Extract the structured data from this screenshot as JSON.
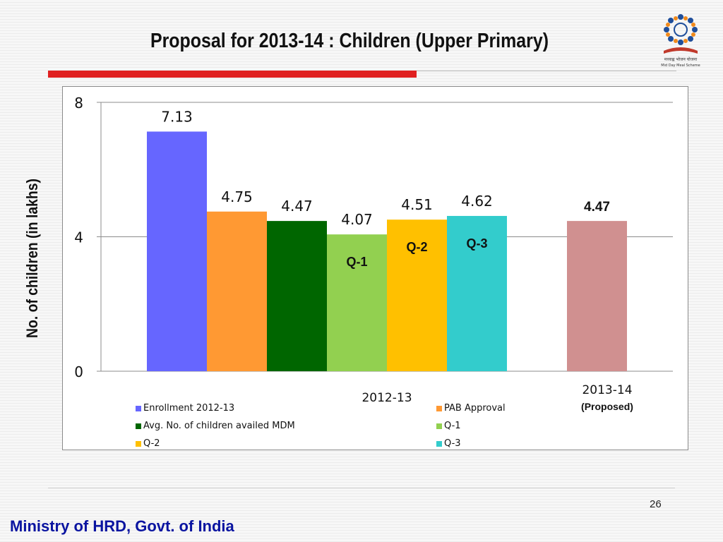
{
  "slide": {
    "title": "Proposal for 2013-14 : Children (Upper Primary)",
    "page_number": "26",
    "footer": "Ministry of HRD, Govt. of India"
  },
  "logo": {
    "caption": "मध्याह्न भोजन योजना",
    "subcaption": "Mid Day Meal Scheme"
  },
  "chart_data": {
    "type": "bar",
    "ylabel": "No. of children (in lakhs)",
    "ylim": [
      0,
      8
    ],
    "yticks": [
      "0",
      "4",
      "8"
    ],
    "groups": [
      {
        "label": "2012-13",
        "sublabel": ""
      },
      {
        "label": "2013-14",
        "sublabel": "(Proposed)"
      }
    ],
    "series": [
      {
        "name": "Enrollment 2012-13",
        "group": 0,
        "value": 7.13,
        "label": "7.13",
        "inner_label": "",
        "color": "#6666ff"
      },
      {
        "name": "PAB Approval",
        "group": 0,
        "value": 4.75,
        "label": "4.75",
        "inner_label": "",
        "color": "#ff9933"
      },
      {
        "name": "Avg. No. of children availed MDM",
        "group": 0,
        "value": 4.47,
        "label": "4.47",
        "inner_label": "",
        "color": "#006600"
      },
      {
        "name": "Q-1",
        "group": 0,
        "value": 4.07,
        "label": "4.07",
        "inner_label": "Q-1",
        "color": "#92d050"
      },
      {
        "name": "Q-2",
        "group": 0,
        "value": 4.51,
        "label": "4.51",
        "inner_label": "Q-2",
        "color": "#ffc000"
      },
      {
        "name": "Q-3",
        "group": 0,
        "value": 4.62,
        "label": "4.62",
        "inner_label": "Q-3",
        "color": "#33cccc"
      },
      {
        "name": "",
        "group": 1,
        "value": 4.47,
        "label": "4.47",
        "inner_label": "",
        "color": "#d09090"
      }
    ],
    "legend": [
      "Enrollment 2012-13",
      "PAB Approval",
      "Avg. No. of children availed MDM",
      "Q-1",
      "Q-2",
      "Q-3"
    ],
    "legend_placement": "bottom",
    "grid": true
  }
}
